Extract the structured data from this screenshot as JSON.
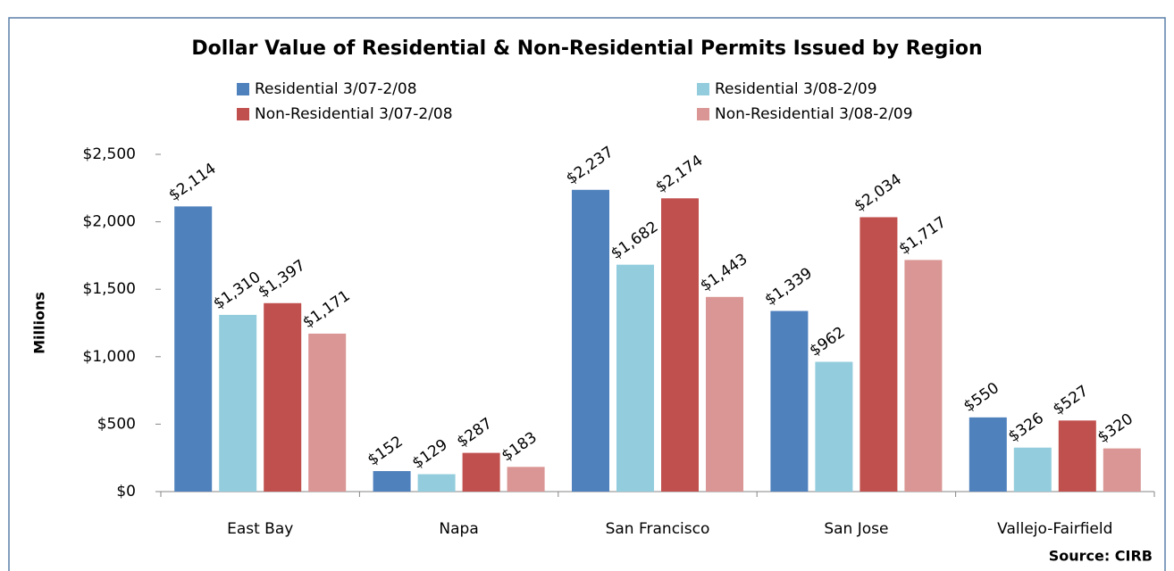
{
  "chart_data": {
    "type": "bar",
    "title": "Dollar Value of Residential & Non-Residential Permits Issued by Region",
    "y_label": "Millions",
    "source": "Source: CIRB",
    "categories": [
      "East Bay",
      "Napa",
      "San Francisco",
      "San Jose",
      "Vallejo-Fairfield"
    ],
    "series": [
      {
        "name": "Residential 3/07-2/08",
        "color": "#4f81bd",
        "values": [
          2114,
          152,
          2237,
          1339,
          550
        ],
        "value_labels": [
          "$2,114",
          "$152",
          "$2,237",
          "$1,339",
          "$550"
        ]
      },
      {
        "name": "Residential 3/08-2/09",
        "color": "#93cddd",
        "values": [
          1310,
          129,
          1682,
          962,
          326
        ],
        "value_labels": [
          "$1,310",
          "$129",
          "$1,682",
          "$962",
          "$326"
        ]
      },
      {
        "name": "Non-Residential 3/07-2/08",
        "color": "#c0504d",
        "values": [
          1397,
          287,
          2174,
          2034,
          527
        ],
        "value_labels": [
          "$1,397",
          "$287",
          "$2,174",
          "$2,034",
          "$527"
        ]
      },
      {
        "name": "Non-Residential 3/08-2/09",
        "color": "#d99694",
        "values": [
          1171,
          183,
          1443,
          1717,
          320
        ],
        "value_labels": [
          "$1,171",
          "$183",
          "$1,443",
          "$1,717",
          "$320"
        ]
      }
    ],
    "ylim": [
      0,
      2500
    ],
    "yticks": [
      {
        "value": 0,
        "label": "$0"
      },
      {
        "value": 500,
        "label": "$500"
      },
      {
        "value": 1000,
        "label": "$1,000"
      },
      {
        "value": 1500,
        "label": "$1,500"
      },
      {
        "value": 2000,
        "label": "$2,000"
      },
      {
        "value": 2500,
        "label": "$2,500"
      }
    ],
    "grid": false
  }
}
